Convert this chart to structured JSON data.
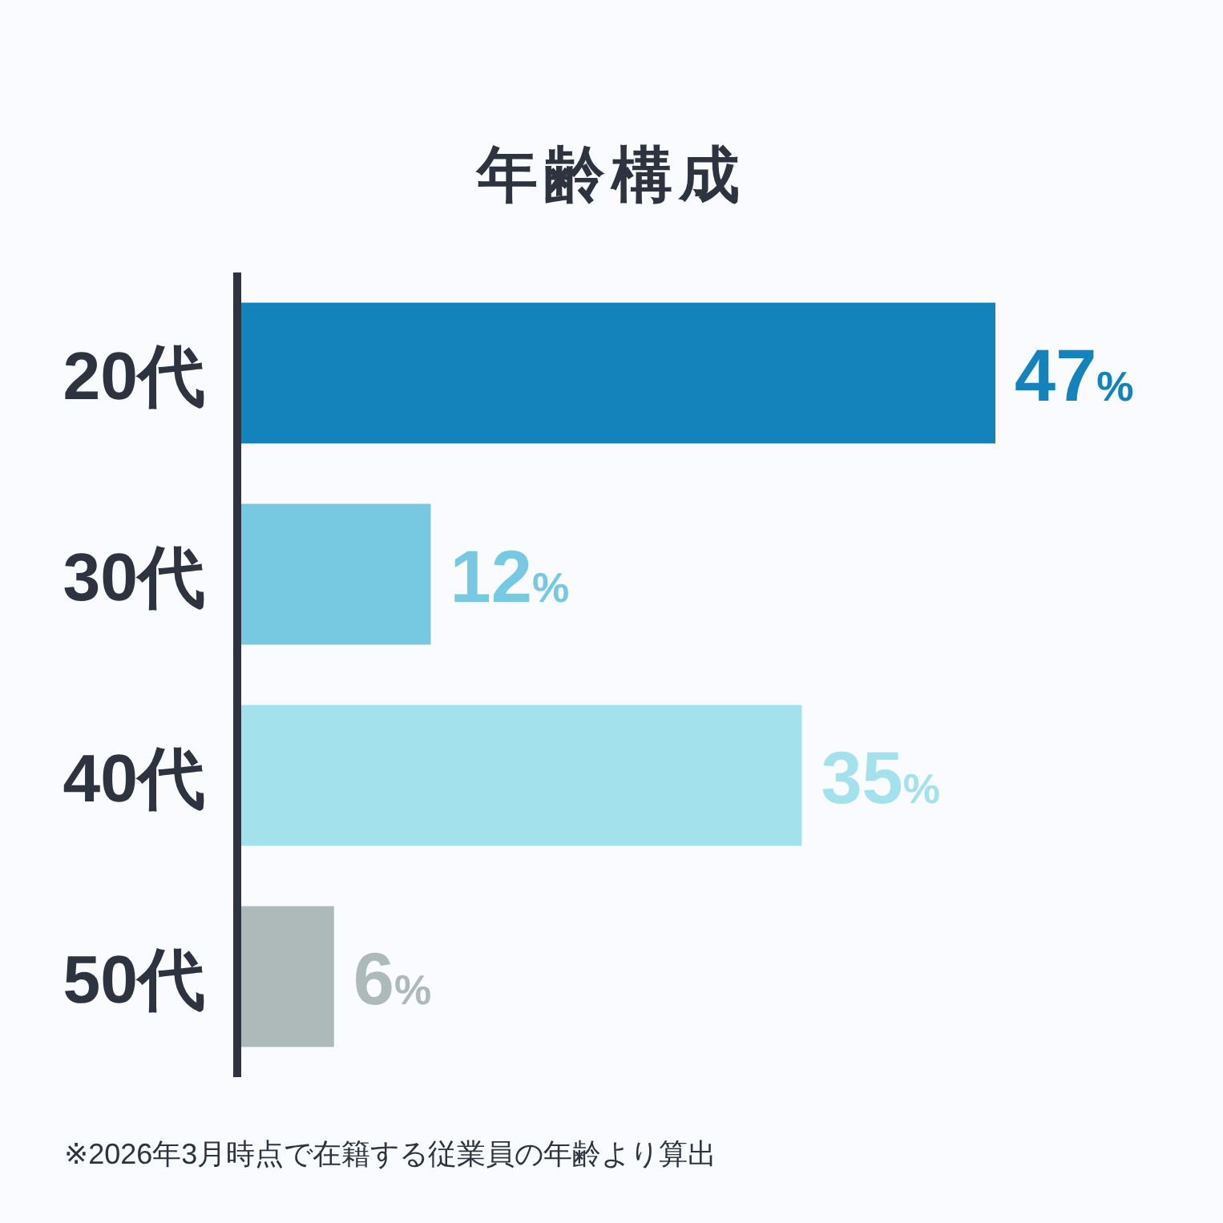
{
  "chart_data": {
    "type": "bar",
    "orientation": "horizontal",
    "title": "年齢構成",
    "categories": [
      "20代",
      "30代",
      "40代",
      "50代"
    ],
    "values": [
      47,
      12,
      35,
      6
    ],
    "colors": [
      "#1483bb",
      "#76c9e0",
      "#a3e2ec",
      "#aebaba"
    ],
    "value_labels": [
      "47%",
      "12%",
      "35%",
      "6%"
    ],
    "annotations": [
      "※2026年3月時点で在籍する従業員の年齢より算出"
    ]
  }
}
